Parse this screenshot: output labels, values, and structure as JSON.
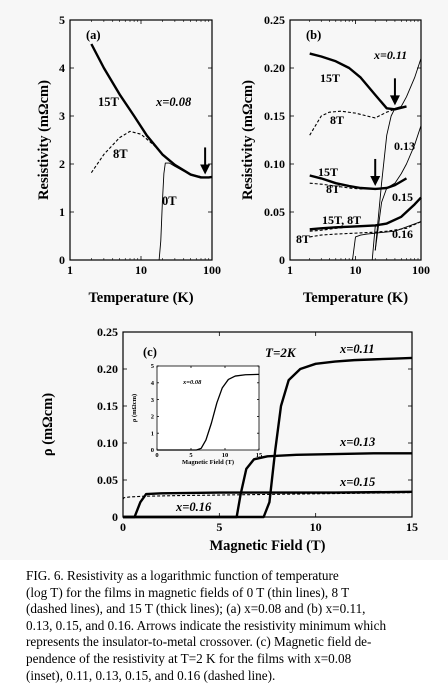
{
  "figure": {
    "panels": [
      {
        "id": "a",
        "label": "(a)",
        "xlabel": "Temperature (K)",
        "ylabel": "Resistivity (mΩcm)",
        "x_ticks": [
          "1",
          "10",
          "100"
        ],
        "y_ticks": [
          "0",
          "1",
          "2",
          "3",
          "4",
          "5"
        ],
        "annotations": [
          "15T",
          "x=0.08",
          "8T",
          "0T"
        ]
      },
      {
        "id": "b",
        "label": "(b)",
        "xlabel": "Temperature (K)",
        "ylabel": "Resistivity (mΩcm)",
        "x_ticks": [
          "1",
          "10",
          "100"
        ],
        "y_ticks": [
          "0",
          "0.05",
          "0.10",
          "0.15",
          "0.20",
          "0.25"
        ],
        "annotations": [
          "x=0.11",
          "15T",
          "8T",
          "0.13",
          "15T",
          "8T",
          "0.15",
          "15T, 8T",
          "8T",
          "0.16"
        ]
      },
      {
        "id": "c",
        "label": "(c)",
        "xlabel": "Magnetic Field (T)",
        "ylabel": "ρ (mΩcm)",
        "x_ticks": [
          "0",
          "5",
          "10",
          "15"
        ],
        "y_ticks": [
          "0",
          "0.05",
          "0.10",
          "0.15",
          "0.20",
          "0.25"
        ],
        "annotations": [
          "T=2K",
          "x=0.11",
          "x=0.13",
          "x=0.15",
          "x=0.16"
        ],
        "inset": {
          "xlabel": "Magnetic Field (T)",
          "ylabel": "ρ (mΩcm)",
          "x_ticks": [
            "0",
            "5",
            "10",
            "15"
          ],
          "y_ticks": [
            "0",
            "1",
            "2",
            "3",
            "4",
            "5"
          ],
          "annotation": "x=0.08"
        }
      }
    ]
  },
  "caption": {
    "lines": [
      "FIG. 6. Resistivity as a logarithmic function of temperature",
      "(log T) for the films in magnetic fields of 0 T (thin lines), 8 T",
      "(dashed lines), and 15 T (thick lines); (a) x=0.08 and (b) x=0.11,",
      "0.13, 0.15, and 0.16. Arrows indicate the resistivity minimum which",
      "represents the insulator-to-metal crossover. (c) Magnetic field de-",
      "pendence of the resistivity at T=2 K for the films with x=0.08",
      "(inset), 0.11, 0.13, 0.15, and 0.16 (dashed line)."
    ]
  },
  "chart_data": [
    {
      "type": "line",
      "panel": "a",
      "title": "",
      "xlabel": "Temperature (K)",
      "ylabel": "Resistivity (mΩcm)",
      "x_scale": "log",
      "xlim": [
        1,
        100
      ],
      "ylim": [
        0,
        5
      ],
      "series": [
        {
          "name": "15T",
          "style": "thick",
          "x": [
            2,
            3,
            5,
            8,
            12,
            20,
            30,
            50,
            70,
            90,
            100
          ],
          "y": [
            4.5,
            4.0,
            3.45,
            3.0,
            2.6,
            2.2,
            1.98,
            1.78,
            1.72,
            1.72,
            1.73
          ]
        },
        {
          "name": "8T",
          "style": "dashed",
          "x": [
            2,
            3,
            5,
            7,
            10,
            15,
            20,
            30,
            50,
            80,
            100
          ],
          "y": [
            1.82,
            2.2,
            2.55,
            2.68,
            2.62,
            2.4,
            2.2,
            1.98,
            1.78,
            1.72,
            1.73
          ]
        },
        {
          "name": "0T",
          "style": "thin",
          "x": [
            18,
            19,
            20,
            21,
            22,
            25,
            30,
            40,
            60,
            80,
            100
          ],
          "y": [
            0.0,
            0.4,
            1.2,
            1.8,
            2.02,
            2.02,
            1.95,
            1.85,
            1.75,
            1.72,
            1.73
          ]
        }
      ],
      "arrows_at": [
        {
          "x": 80,
          "y": 1.72
        }
      ]
    },
    {
      "type": "line",
      "panel": "b",
      "title": "",
      "xlabel": "Temperature (K)",
      "ylabel": "Resistivity (mΩcm)",
      "x_scale": "log",
      "xlim": [
        1,
        100
      ],
      "ylim": [
        0,
        0.25
      ],
      "series": [
        {
          "name": "x=0.11 15T",
          "style": "thick",
          "x": [
            2,
            3,
            5,
            8,
            12,
            20,
            30,
            40,
            60
          ],
          "y": [
            0.215,
            0.212,
            0.207,
            0.2,
            0.19,
            0.172,
            0.158,
            0.157,
            0.16
          ]
        },
        {
          "name": "x=0.11 8T",
          "style": "dashed",
          "x": [
            2,
            3,
            4,
            6,
            10,
            15,
            20,
            30,
            40,
            60
          ],
          "y": [
            0.13,
            0.15,
            0.154,
            0.155,
            0.153,
            0.15,
            0.148,
            0.154,
            0.157,
            0.16
          ]
        },
        {
          "name": "x=0.11 0T",
          "style": "thin",
          "x": [
            20,
            25,
            30,
            35,
            40,
            50,
            60,
            80,
            100
          ],
          "y": [
            0.01,
            0.08,
            0.13,
            0.15,
            0.158,
            0.16,
            0.17,
            0.19,
            0.21
          ]
        },
        {
          "name": "x=0.13 15T",
          "style": "thick",
          "x": [
            2,
            3,
            5,
            8,
            12,
            20,
            30,
            40,
            60
          ],
          "y": [
            0.088,
            0.085,
            0.08,
            0.077,
            0.075,
            0.074,
            0.075,
            0.078,
            0.085
          ]
        },
        {
          "name": "x=0.13 8T",
          "style": "dashed",
          "x": [
            2,
            3,
            5,
            8,
            12,
            20,
            30,
            40,
            60
          ],
          "y": [
            0.08,
            0.079,
            0.077,
            0.075,
            0.074,
            0.074,
            0.075,
            0.078,
            0.085
          ]
        },
        {
          "name": "x=0.13 0T",
          "style": "thin",
          "x": [
            20,
            25,
            30,
            40,
            50,
            60,
            80,
            100
          ],
          "y": [
            0.01,
            0.06,
            0.075,
            0.08,
            0.09,
            0.1,
            0.12,
            0.14
          ]
        },
        {
          "name": "x=0.15 15T",
          "style": "thick",
          "x": [
            2,
            3,
            5,
            10,
            20,
            30,
            50,
            80,
            100
          ],
          "y": [
            0.032,
            0.033,
            0.034,
            0.035,
            0.036,
            0.038,
            0.045,
            0.058,
            0.065
          ]
        },
        {
          "name": "x=0.15 8T",
          "style": "dashed",
          "x": [
            2,
            3,
            5,
            10,
            20,
            30,
            50,
            80,
            100
          ],
          "y": [
            0.03,
            0.031,
            0.033,
            0.035,
            0.036,
            0.038,
            0.045,
            0.058,
            0.065
          ]
        },
        {
          "name": "x=0.15 0T",
          "style": "thin",
          "x": [
            18,
            20,
            25,
            30,
            50,
            80,
            100
          ],
          "y": [
            0.0,
            0.035,
            0.037,
            0.038,
            0.045,
            0.058,
            0.065
          ]
        },
        {
          "name": "x=0.16 8T",
          "style": "dashed",
          "x": [
            2,
            3,
            5,
            10,
            20,
            30,
            60,
            100
          ],
          "y": [
            0.024,
            0.026,
            0.027,
            0.028,
            0.029,
            0.03,
            0.033,
            0.04
          ]
        },
        {
          "name": "x=0.16 0T",
          "style": "thin",
          "x": [
            9,
            10,
            12,
            15,
            20,
            40,
            100
          ],
          "y": [
            0.0,
            0.024,
            0.026,
            0.027,
            0.028,
            0.03,
            0.04
          ]
        }
      ],
      "arrows_at": [
        {
          "x": 40,
          "y": 0.158
        },
        {
          "x": 20,
          "y": 0.074
        }
      ]
    },
    {
      "type": "line",
      "panel": "c",
      "title": "",
      "xlabel": "Magnetic Field (T)",
      "ylabel": "ρ (mΩcm)",
      "xlim": [
        0,
        15
      ],
      "ylim": [
        0,
        0.25
      ],
      "series": [
        {
          "name": "x=0.11",
          "style": "thick",
          "x": [
            0,
            7.3,
            7.6,
            7.9,
            8.2,
            8.6,
            9.2,
            10,
            11,
            12,
            13,
            14,
            15
          ],
          "y": [
            0,
            0,
            0.02,
            0.09,
            0.15,
            0.185,
            0.2,
            0.207,
            0.21,
            0.212,
            0.213,
            0.214,
            0.215
          ]
        },
        {
          "name": "x=0.13",
          "style": "thick",
          "x": [
            0,
            5.9,
            6.1,
            6.4,
            6.8,
            7.5,
            9,
            11,
            13,
            15
          ],
          "y": [
            0,
            0,
            0.03,
            0.065,
            0.078,
            0.082,
            0.084,
            0.085,
            0.086,
            0.086
          ]
        },
        {
          "name": "x=0.15",
          "style": "thick",
          "x": [
            0,
            0.6,
            0.9,
            1.2,
            2,
            5,
            8,
            11,
            15
          ],
          "y": [
            0,
            0,
            0.02,
            0.031,
            0.032,
            0.033,
            0.033,
            0.033,
            0.034
          ]
        },
        {
          "name": "x=0.16",
          "style": "dashed",
          "x": [
            0,
            0.05,
            0.3,
            1,
            3,
            6,
            9,
            12,
            15
          ],
          "y": [
            0.024,
            0.026,
            0.027,
            0.028,
            0.029,
            0.03,
            0.031,
            0.032,
            0.033
          ]
        }
      ]
    },
    {
      "type": "line",
      "panel": "c-inset",
      "title": "",
      "xlabel": "Magnetic Field (T)",
      "ylabel": "ρ (mΩcm)",
      "xlim": [
        0,
        15
      ],
      "ylim": [
        0,
        5
      ],
      "series": [
        {
          "name": "x=0.08",
          "style": "thick",
          "x": [
            0,
            5.8,
            6.5,
            7.2,
            8,
            8.8,
            9.6,
            10.5,
            11.5,
            13,
            15
          ],
          "y": [
            0,
            0,
            0.1,
            0.6,
            1.6,
            2.8,
            3.7,
            4.2,
            4.4,
            4.48,
            4.5
          ]
        }
      ]
    }
  ]
}
